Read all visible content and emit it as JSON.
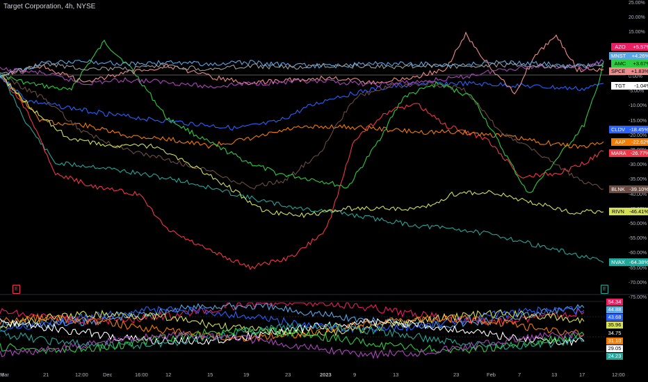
{
  "header": {
    "title": "Target Corporation, 4h, NYSE"
  },
  "y_axis": {
    "labels": [
      "25.00%",
      "20.00%",
      "15.00%",
      "10.00%",
      "5.00%",
      "0.00%",
      "-5.00%",
      "-10.00%",
      "-15.00%",
      "-20.00%",
      "-25.00%",
      "-30.00%",
      "-35.00%",
      "-40.00%",
      "-45.00%",
      "-50.00%",
      "-55.00%",
      "-60.00%",
      "-65.00%",
      "-70.00%",
      "-75.00%"
    ]
  },
  "x_axis": {
    "labels": [
      "8",
      "21",
      "12:00",
      "Dec",
      "16:00",
      "12",
      "15",
      "19",
      "23",
      "2023",
      "9",
      "13",
      "23",
      "Feb",
      "7",
      "13",
      "17",
      "12:00",
      "Mar"
    ]
  },
  "symbol_tags": [
    {
      "symbol": "AZO",
      "value": "+5.57%",
      "color": "#e91e63",
      "text": "#ffffff"
    },
    {
      "symbol": "MNST",
      "value": "+4.26%",
      "color": "#5aa7e8",
      "text": "#ffffff"
    },
    {
      "symbol": "AMC",
      "value": "+3.67%",
      "color": "#2ecc40",
      "text": "#000000"
    },
    {
      "symbol": "SPCE",
      "value": "+1.83%",
      "color": "#f08c8c",
      "text": "#000000"
    },
    {
      "symbol": "TGT",
      "value": "-1.04%",
      "color": "#ffffff",
      "text": "#000000"
    },
    {
      "symbol": "CLDV",
      "value": "-18.45%",
      "color": "#2962ff",
      "text": "#ffffff"
    },
    {
      "symbol": "AAP",
      "value": "-22.62%",
      "color": "#f57c00",
      "text": "#ffffff"
    },
    {
      "symbol": "MARA",
      "value": "-26.77%",
      "color": "#f23645",
      "text": "#ffffff"
    },
    {
      "symbol": "BLNK",
      "value": "-39.10%",
      "color": "#6d4c41",
      "text": "#ffffff"
    },
    {
      "symbol": "RIVN",
      "value": "-46.41%",
      "color": "#d4e157",
      "text": "#000000"
    },
    {
      "symbol": "NVAX",
      "value": "-64.38%",
      "color": "#26a69a",
      "text": "#ffffff"
    }
  ],
  "oscillator_tags": [
    {
      "value": "54.34",
      "color": "#e91e63",
      "text": "#ffffff"
    },
    {
      "value": "44.88",
      "color": "#5aa7e8",
      "text": "#ffffff"
    },
    {
      "value": "43.68",
      "color": "#2962ff",
      "text": "#ffffff"
    },
    {
      "value": "35.96",
      "color": "#d4e157",
      "text": "#000000"
    },
    {
      "value": "34.75",
      "color": "#000000",
      "text": "#ffffff"
    },
    {
      "value": "31.10",
      "color": "#f57c00",
      "text": "#ffffff"
    },
    {
      "value": "29.05",
      "color": "#ffffff",
      "text": "#000000"
    },
    {
      "value": "24.23",
      "color": "#26a69a",
      "text": "#ffffff"
    }
  ],
  "markers": [
    {
      "label": "E",
      "color": "#f23645"
    },
    {
      "label": "E",
      "color": "#26a69a"
    }
  ]
}
